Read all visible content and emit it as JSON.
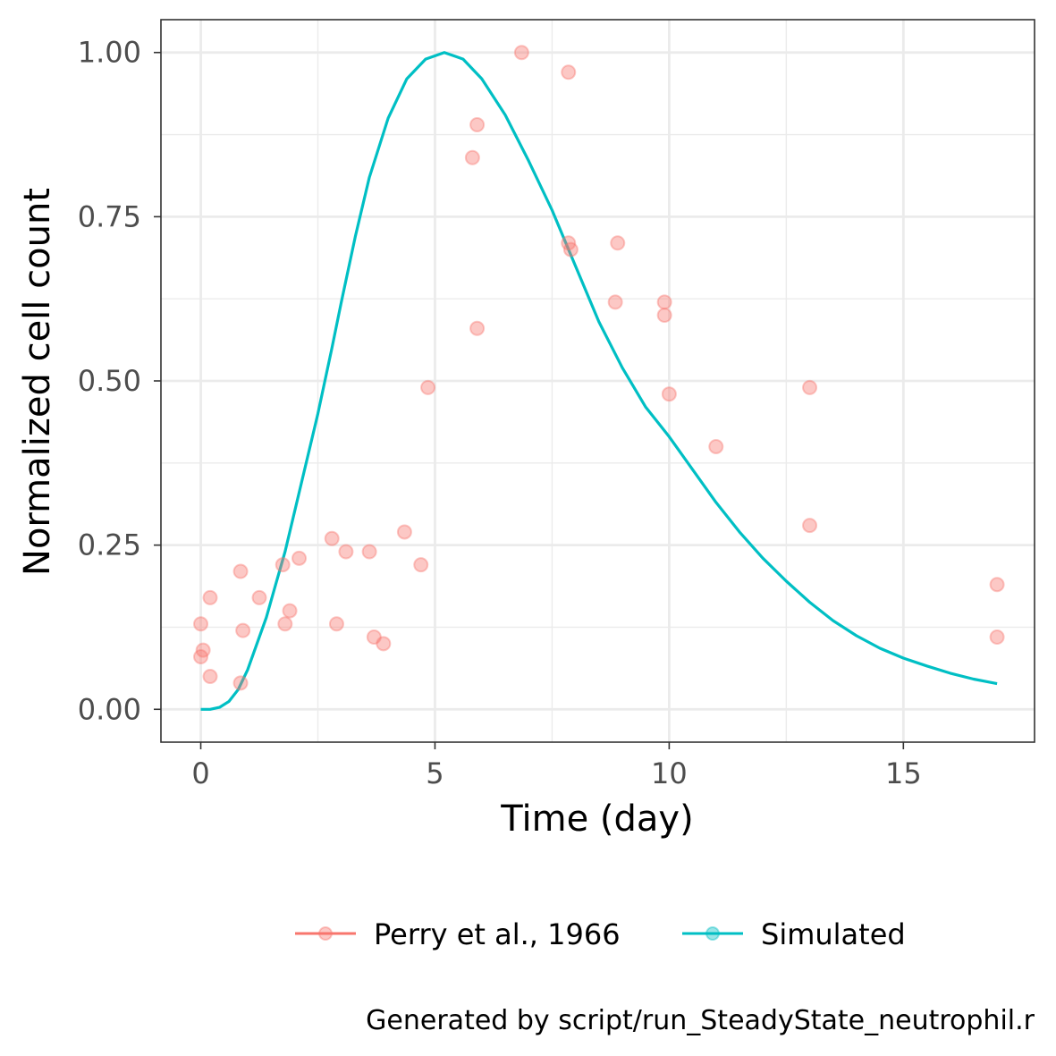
{
  "chart_data": {
    "type": "line",
    "xlabel": "Time (day)",
    "ylabel": "Normalized cell count",
    "xlim": [
      -0.85,
      17.8
    ],
    "ylim": [
      -0.05,
      1.05
    ],
    "x_ticks": [
      0,
      5,
      10,
      15
    ],
    "x_tick_labels": [
      "0",
      "5",
      "10",
      "15"
    ],
    "y_ticks": [
      0,
      0.25,
      0.5,
      0.75,
      1.0
    ],
    "y_tick_labels": [
      "0.00",
      "0.25",
      "0.50",
      "0.75",
      "1.00"
    ],
    "grid": true,
    "legend_position": "bottom",
    "series": [
      {
        "name": "Perry et al., 1966",
        "kind": "points",
        "color": "#F8766D",
        "points": [
          [
            0.0,
            0.13
          ],
          [
            0.0,
            0.08
          ],
          [
            0.05,
            0.09
          ],
          [
            0.2,
            0.17
          ],
          [
            0.2,
            0.05
          ],
          [
            0.85,
            0.21
          ],
          [
            0.9,
            0.12
          ],
          [
            0.85,
            0.04
          ],
          [
            1.25,
            0.17
          ],
          [
            1.75,
            0.22
          ],
          [
            1.8,
            0.13
          ],
          [
            1.9,
            0.15
          ],
          [
            2.1,
            0.23
          ],
          [
            2.8,
            0.26
          ],
          [
            2.9,
            0.13
          ],
          [
            3.1,
            0.24
          ],
          [
            3.6,
            0.24
          ],
          [
            3.7,
            0.11
          ],
          [
            3.9,
            0.1
          ],
          [
            4.35,
            0.27
          ],
          [
            4.7,
            0.22
          ],
          [
            4.85,
            0.49
          ],
          [
            5.8,
            0.84
          ],
          [
            5.9,
            0.89
          ],
          [
            5.9,
            0.58
          ],
          [
            6.85,
            1.0
          ],
          [
            7.85,
            0.97
          ],
          [
            7.85,
            0.71
          ],
          [
            7.9,
            0.7
          ],
          [
            8.85,
            0.62
          ],
          [
            8.9,
            0.71
          ],
          [
            9.9,
            0.62
          ],
          [
            9.9,
            0.6
          ],
          [
            10.0,
            0.48
          ],
          [
            11.0,
            0.4
          ],
          [
            13.0,
            0.49
          ],
          [
            13.0,
            0.28
          ],
          [
            17.0,
            0.19
          ],
          [
            17.0,
            0.11
          ]
        ]
      },
      {
        "name": "Simulated",
        "kind": "line",
        "color": "#00BFC4",
        "points": [
          [
            0.0,
            0.0
          ],
          [
            0.2,
            0.0
          ],
          [
            0.4,
            0.003
          ],
          [
            0.6,
            0.012
          ],
          [
            0.8,
            0.03
          ],
          [
            1.0,
            0.06
          ],
          [
            1.2,
            0.1
          ],
          [
            1.4,
            0.14
          ],
          [
            1.6,
            0.19
          ],
          [
            1.8,
            0.24
          ],
          [
            2.0,
            0.3
          ],
          [
            2.2,
            0.36
          ],
          [
            2.5,
            0.45
          ],
          [
            2.8,
            0.55
          ],
          [
            3.0,
            0.62
          ],
          [
            3.3,
            0.72
          ],
          [
            3.6,
            0.81
          ],
          [
            4.0,
            0.9
          ],
          [
            4.4,
            0.96
          ],
          [
            4.8,
            0.99
          ],
          [
            5.2,
            1.0
          ],
          [
            5.6,
            0.99
          ],
          [
            6.0,
            0.96
          ],
          [
            6.5,
            0.905
          ],
          [
            7.0,
            0.835
          ],
          [
            7.5,
            0.76
          ],
          [
            8.0,
            0.675
          ],
          [
            8.5,
            0.59
          ],
          [
            9.0,
            0.52
          ],
          [
            9.5,
            0.46
          ],
          [
            10.0,
            0.415
          ],
          [
            10.5,
            0.365
          ],
          [
            11.0,
            0.315
          ],
          [
            11.5,
            0.27
          ],
          [
            12.0,
            0.23
          ],
          [
            12.5,
            0.195
          ],
          [
            13.0,
            0.163
          ],
          [
            13.5,
            0.135
          ],
          [
            14.0,
            0.112
          ],
          [
            14.5,
            0.093
          ],
          [
            15.0,
            0.078
          ],
          [
            15.5,
            0.066
          ],
          [
            16.0,
            0.055
          ],
          [
            16.5,
            0.046
          ],
          [
            17.0,
            0.039
          ]
        ]
      }
    ],
    "caption": "Generated by script/run_SteadyState_neutrophil.r"
  }
}
